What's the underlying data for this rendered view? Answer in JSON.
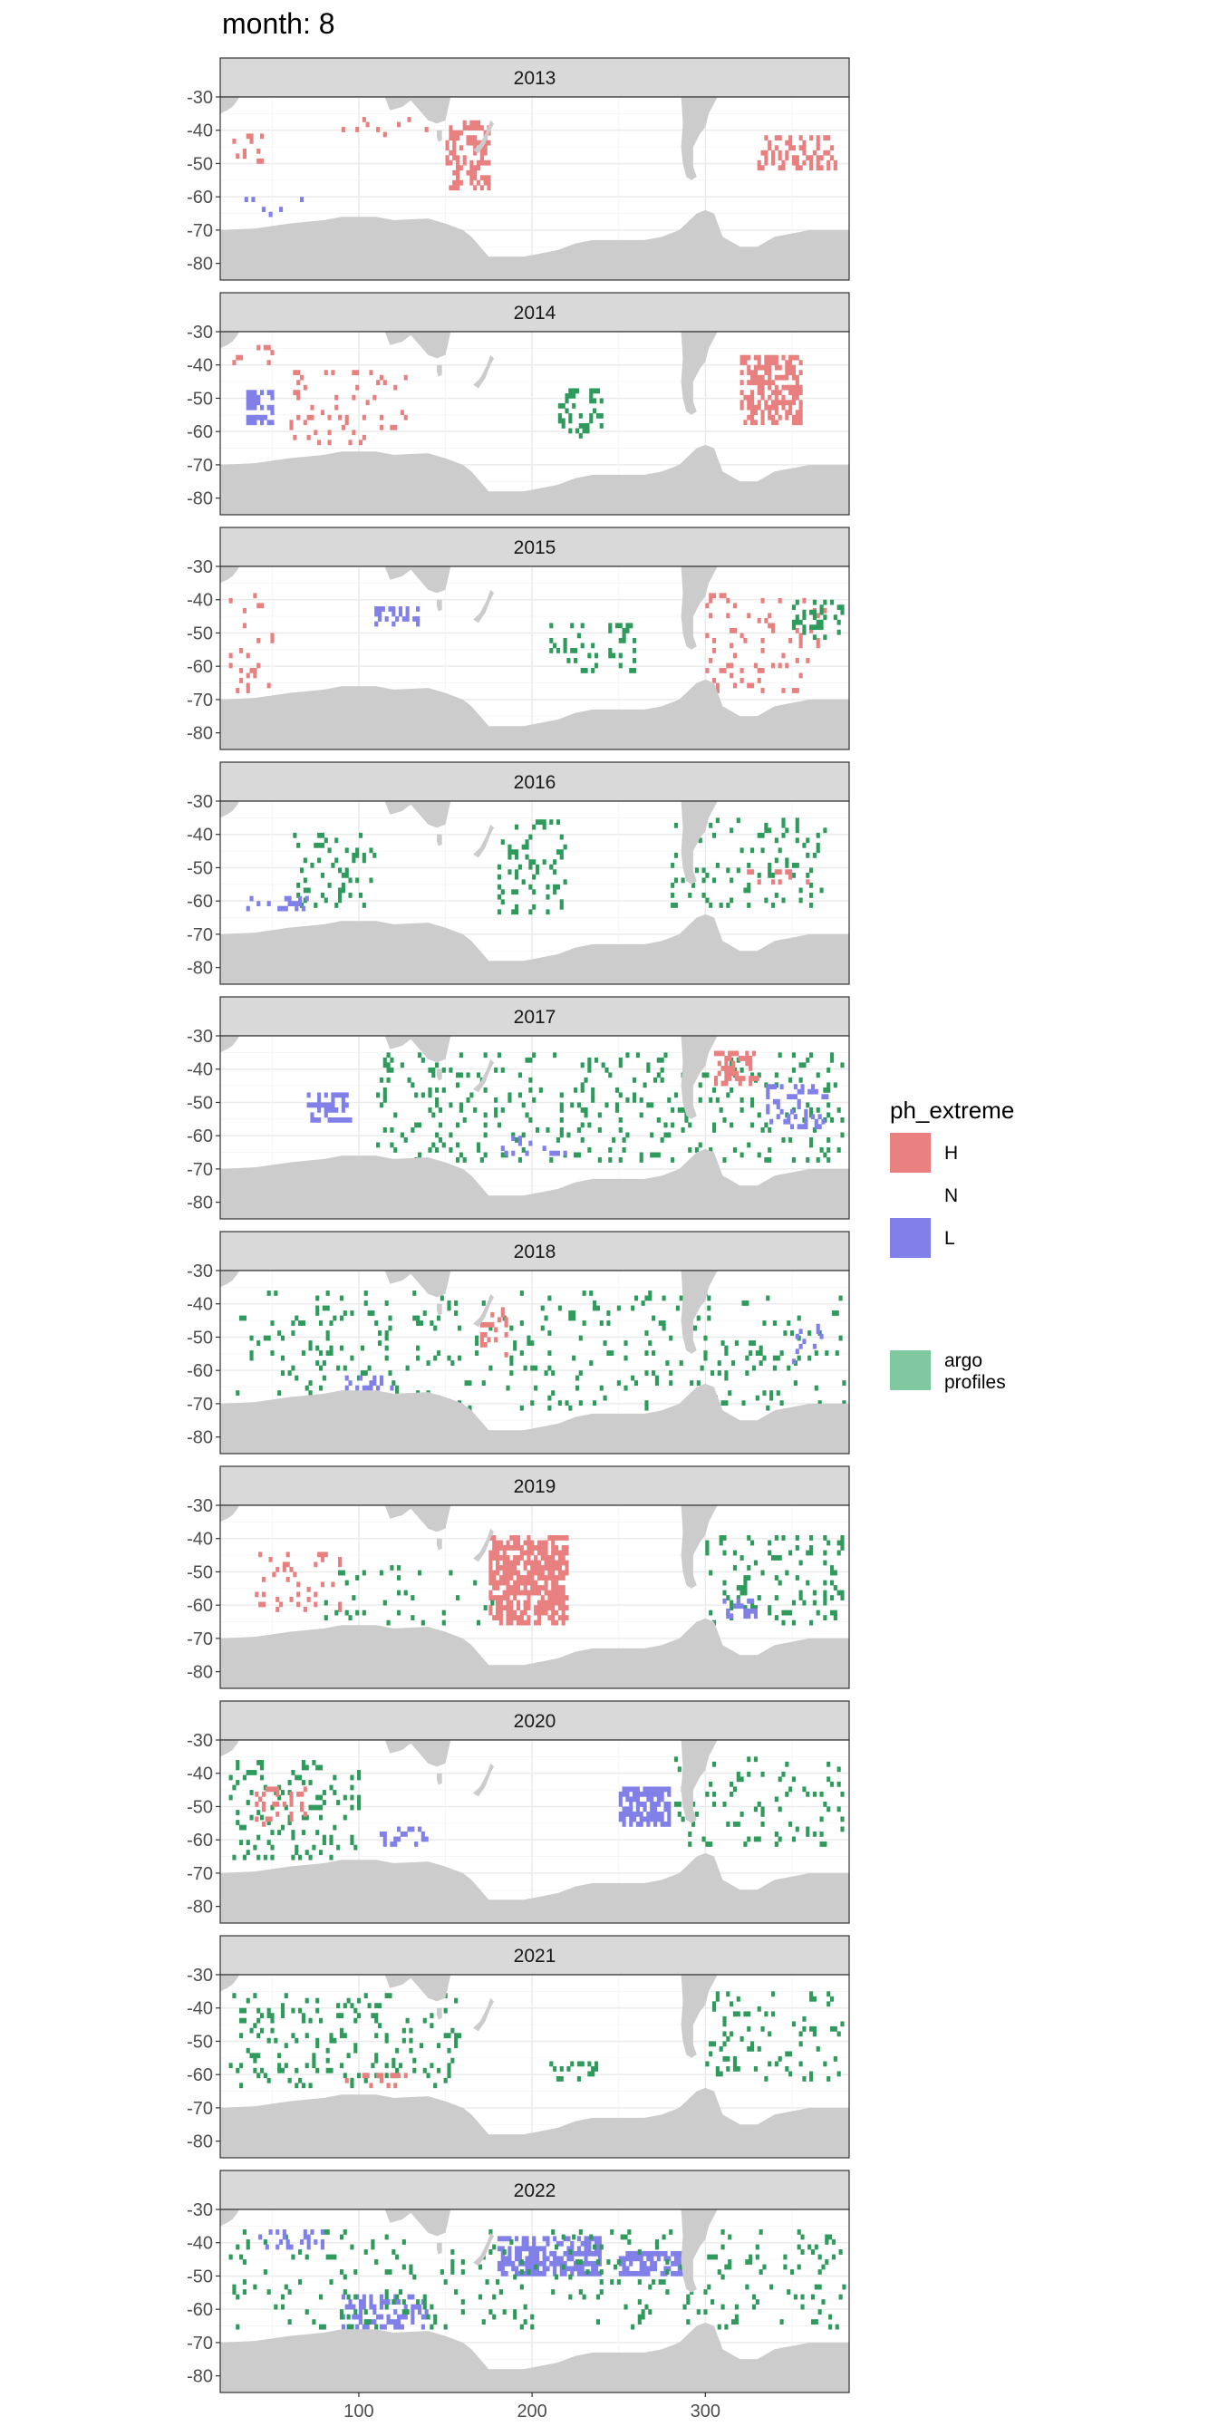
{
  "page_title": "month: 8",
  "chart_data": {
    "type": "heatmap",
    "title": "month: 8",
    "facets": [
      "2013",
      "2014",
      "2015",
      "2016",
      "2017",
      "2018",
      "2019",
      "2020",
      "2021",
      "2022"
    ],
    "x_ticks": [
      100,
      200,
      300
    ],
    "xlim": [
      20,
      383
    ],
    "y_ticks": [
      -30,
      -40,
      -50,
      -60,
      -70,
      -80
    ],
    "ylim": [
      -85,
      -30
    ],
    "grid": true,
    "legend": {
      "position": "right",
      "title": "ph_extreme",
      "items": [
        {
          "label": "H",
          "color": "#E88080"
        },
        {
          "label": "N",
          "color": "#ffffff"
        },
        {
          "label": "L",
          "color": "#8080E8"
        },
        {
          "label": "argo profiles",
          "color": "#80C8A0"
        }
      ]
    },
    "colors": {
      "H": "#E88080",
      "L": "#8080E8",
      "argo": "#2E9A5C",
      "land": "#CCCCCC",
      "strip": "#D9D9D9"
    },
    "blobs": {
      "2013": [
        {
          "cat": "H",
          "lon": [
            150,
            175
          ],
          "lat": [
            -58,
            -38
          ],
          "d": 0.45
        },
        {
          "cat": "H",
          "lon": [
            25,
            45
          ],
          "lat": [
            -50,
            -42
          ],
          "d": 0.3
        },
        {
          "cat": "H",
          "lon": [
            330,
            375
          ],
          "lat": [
            -52,
            -42
          ],
          "d": 0.35
        },
        {
          "cat": "H",
          "lon": [
            90,
            140
          ],
          "lat": [
            -42,
            -36
          ],
          "d": 0.15
        },
        {
          "cat": "L",
          "lon": [
            30,
            70
          ],
          "lat": [
            -66,
            -60
          ],
          "d": 0.1
        }
      ],
      "2014": [
        {
          "cat": "H",
          "lon": [
            320,
            355
          ],
          "lat": [
            -58,
            -38
          ],
          "d": 0.6
        },
        {
          "cat": "L",
          "lon": [
            35,
            50
          ],
          "lat": [
            -58,
            -48
          ],
          "d": 0.7
        },
        {
          "cat": "argo",
          "lon": [
            215,
            240
          ],
          "lat": [
            -62,
            -48
          ],
          "d": 0.25
        },
        {
          "cat": "H",
          "lon": [
            60,
            130
          ],
          "lat": [
            -64,
            -42
          ],
          "d": 0.08
        },
        {
          "cat": "H",
          "lon": [
            25,
            50
          ],
          "lat": [
            -40,
            -34
          ],
          "d": 0.2
        }
      ],
      "2015": [
        {
          "cat": "argo",
          "lon": [
            210,
            260
          ],
          "lat": [
            -62,
            -48
          ],
          "d": 0.2
        },
        {
          "cat": "L",
          "lon": [
            105,
            135
          ],
          "lat": [
            -48,
            -42
          ],
          "d": 0.4
        },
        {
          "cat": "H",
          "lon": [
            300,
            370
          ],
          "lat": [
            -68,
            -38
          ],
          "d": 0.08
        },
        {
          "cat": "argo",
          "lon": [
            350,
            380
          ],
          "lat": [
            -52,
            -40
          ],
          "d": 0.25
        },
        {
          "cat": "H",
          "lon": [
            25,
            50
          ],
          "lat": [
            -68,
            -38
          ],
          "d": 0.1
        }
      ],
      "2016": [
        {
          "cat": "argo",
          "lon": [
            60,
            110
          ],
          "lat": [
            -62,
            -40
          ],
          "d": 0.15
        },
        {
          "cat": "argo",
          "lon": [
            180,
            220
          ],
          "lat": [
            -64,
            -36
          ],
          "d": 0.2
        },
        {
          "cat": "argo",
          "lon": [
            280,
            370
          ],
          "lat": [
            -62,
            -36
          ],
          "d": 0.12
        },
        {
          "cat": "L",
          "lon": [
            35,
            70
          ],
          "lat": [
            -63,
            -59
          ],
          "d": 0.2
        },
        {
          "cat": "H",
          "lon": [
            320,
            360
          ],
          "lat": [
            -55,
            -51
          ],
          "d": 0.2
        }
      ],
      "2017": [
        {
          "cat": "argo",
          "lon": [
            110,
            380
          ],
          "lat": [
            -68,
            -36
          ],
          "d": 0.1
        },
        {
          "cat": "H",
          "lon": [
            305,
            330
          ],
          "lat": [
            -45,
            -35
          ],
          "d": 0.5
        },
        {
          "cat": "L",
          "lon": [
            335,
            370
          ],
          "lat": [
            -58,
            -45
          ],
          "d": 0.3
        },
        {
          "cat": "L",
          "lon": [
            70,
            95
          ],
          "lat": [
            -56,
            -48
          ],
          "d": 0.4
        },
        {
          "cat": "L",
          "lon": [
            180,
            220
          ],
          "lat": [
            -66,
            -60
          ],
          "d": 0.15
        }
      ],
      "2018": [
        {
          "cat": "argo",
          "lon": [
            25,
            380
          ],
          "lat": [
            -72,
            -36
          ],
          "d": 0.07
        },
        {
          "cat": "L",
          "lon": [
            90,
            120
          ],
          "lat": [
            -66,
            -62
          ],
          "d": 0.4
        },
        {
          "cat": "H",
          "lon": [
            170,
            185
          ],
          "lat": [
            -56,
            -42
          ],
          "d": 0.3
        },
        {
          "cat": "L",
          "lon": [
            350,
            370
          ],
          "lat": [
            -58,
            -46
          ],
          "d": 0.15
        }
      ],
      "2019": [
        {
          "cat": "H",
          "lon": [
            175,
            220
          ],
          "lat": [
            -66,
            -40
          ],
          "d": 0.7
        },
        {
          "cat": "H",
          "lon": [
            40,
            90
          ],
          "lat": [
            -62,
            -44
          ],
          "d": 0.12
        },
        {
          "cat": "argo",
          "lon": [
            300,
            380
          ],
          "lat": [
            -66,
            -40
          ],
          "d": 0.15
        },
        {
          "cat": "L",
          "lon": [
            310,
            330
          ],
          "lat": [
            -64,
            -58
          ],
          "d": 0.4
        },
        {
          "cat": "argo",
          "lon": [
            80,
            180
          ],
          "lat": [
            -66,
            -48
          ],
          "d": 0.06
        }
      ],
      "2020": [
        {
          "cat": "L",
          "lon": [
            250,
            280
          ],
          "lat": [
            -56,
            -44
          ],
          "d": 0.75
        },
        {
          "cat": "argo",
          "lon": [
            25,
            100
          ],
          "lat": [
            -66,
            -36
          ],
          "d": 0.12
        },
        {
          "cat": "H",
          "lon": [
            40,
            70
          ],
          "lat": [
            -56,
            -44
          ],
          "d": 0.3
        },
        {
          "cat": "L",
          "lon": [
            110,
            140
          ],
          "lat": [
            -62,
            -56
          ],
          "d": 0.4
        },
        {
          "cat": "argo",
          "lon": [
            280,
            380
          ],
          "lat": [
            -62,
            -36
          ],
          "d": 0.1
        }
      ],
      "2021": [
        {
          "cat": "argo",
          "lon": [
            25,
            160
          ],
          "lat": [
            -64,
            -36
          ],
          "d": 0.12
        },
        {
          "cat": "argo",
          "lon": [
            300,
            380
          ],
          "lat": [
            -62,
            -36
          ],
          "d": 0.1
        },
        {
          "cat": "H",
          "lon": [
            90,
            130
          ],
          "lat": [
            -64,
            -60
          ],
          "d": 0.2
        },
        {
          "cat": "argo",
          "lon": [
            210,
            240
          ],
          "lat": [
            -62,
            -56
          ],
          "d": 0.15
        }
      ],
      "2022": [
        {
          "cat": "L",
          "lon": [
            180,
            240
          ],
          "lat": [
            -50,
            -38
          ],
          "d": 0.65
        },
        {
          "cat": "L",
          "lon": [
            250,
            290
          ],
          "lat": [
            -50,
            -43
          ],
          "d": 0.7
        },
        {
          "cat": "L",
          "lon": [
            90,
            140
          ],
          "lat": [
            -66,
            -56
          ],
          "d": 0.3
        },
        {
          "cat": "argo",
          "lon": [
            25,
            380
          ],
          "lat": [
            -66,
            -36
          ],
          "d": 0.08
        },
        {
          "cat": "L",
          "lon": [
            40,
            80
          ],
          "lat": [
            -42,
            -36
          ],
          "d": 0.2
        }
      ]
    }
  }
}
